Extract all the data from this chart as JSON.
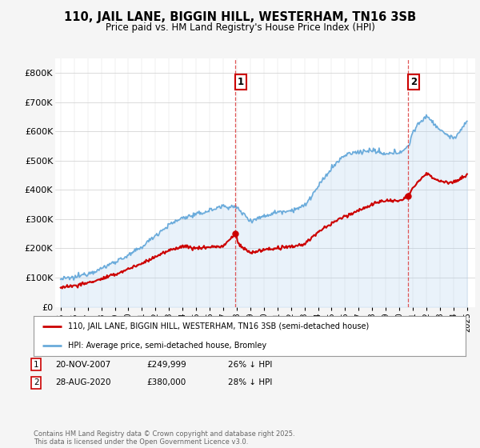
{
  "title1": "110, JAIL LANE, BIGGIN HILL, WESTERHAM, TN16 3SB",
  "title2": "Price paid vs. HM Land Registry's House Price Index (HPI)",
  "ylim": [
    0,
    850000
  ],
  "yticks": [
    0,
    100000,
    200000,
    300000,
    400000,
    500000,
    600000,
    700000,
    800000
  ],
  "ytick_labels": [
    "£0",
    "£100K",
    "£200K",
    "£300K",
    "£400K",
    "£500K",
    "£600K",
    "£700K",
    "£800K"
  ],
  "sale1_x": 2007.9,
  "sale1_y": 249999,
  "sale1_label": "1",
  "sale2_x": 2020.65,
  "sale2_y": 380000,
  "sale2_label": "2",
  "legend_line1": "110, JAIL LANE, BIGGIN HILL, WESTERHAM, TN16 3SB (semi-detached house)",
  "legend_line2": "HPI: Average price, semi-detached house, Bromley",
  "footer": "Contains HM Land Registry data © Crown copyright and database right 2025.\nThis data is licensed under the Open Government Licence v3.0.",
  "line_color_red": "#cc0000",
  "line_color_blue": "#6aabdb",
  "fill_color_blue": "#aaccee",
  "background_color": "#f5f5f5",
  "plot_bg": "#ffffff",
  "vline_color": "#dd4444",
  "xticks": [
    1995,
    1996,
    1997,
    1998,
    1999,
    2000,
    2001,
    2002,
    2003,
    2004,
    2005,
    2006,
    2007,
    2008,
    2009,
    2010,
    2011,
    2012,
    2013,
    2014,
    2015,
    2016,
    2017,
    2018,
    2019,
    2020,
    2021,
    2022,
    2023,
    2024,
    2025
  ],
  "hpi_anchors_years": [
    1995,
    1996,
    1997,
    1998,
    1999,
    2000,
    2001,
    2002,
    2003,
    2004,
    2005,
    2006,
    2007,
    2008,
    2009,
    2010,
    2011,
    2012,
    2013,
    2014,
    2015,
    2016,
    2017,
    2018,
    2019,
    2020,
    2020.65,
    2021,
    2022,
    2023,
    2024,
    2025
  ],
  "hpi_anchors_vals": [
    95000,
    100000,
    115000,
    130000,
    155000,
    175000,
    205000,
    245000,
    280000,
    305000,
    315000,
    330000,
    345000,
    340000,
    295000,
    310000,
    325000,
    330000,
    345000,
    410000,
    475000,
    520000,
    530000,
    535000,
    520000,
    530000,
    545000,
    600000,
    655000,
    605000,
    575000,
    630000
  ],
  "prop_anchors_years": [
    1995,
    1996,
    1997,
    1998,
    1999,
    2000,
    2001,
    2002,
    2003,
    2004,
    2005,
    2006,
    2007,
    2007.9,
    2008.2,
    2009,
    2010,
    2011,
    2012,
    2013,
    2014,
    2015,
    2016,
    2017,
    2018,
    2019,
    2020,
    2020.65,
    2021,
    2022,
    2023,
    2024,
    2025
  ],
  "prop_anchors_vals": [
    68000,
    72000,
    82000,
    95000,
    110000,
    130000,
    148000,
    172000,
    192000,
    208000,
    200000,
    205000,
    207000,
    249999,
    210000,
    185000,
    195000,
    200000,
    205000,
    215000,
    255000,
    285000,
    310000,
    330000,
    350000,
    365000,
    360000,
    380000,
    410000,
    455000,
    430000,
    425000,
    450000
  ]
}
